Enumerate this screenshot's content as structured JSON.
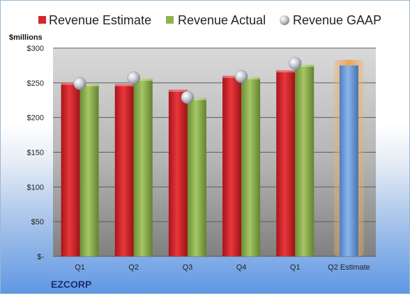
{
  "chart_data": {
    "type": "bar",
    "unit_label": "$millions",
    "company": "EZCORP",
    "categories": [
      "Q1",
      "Q2",
      "Q3",
      "Q4",
      "Q1",
      "Q2 Estimate"
    ],
    "series": [
      {
        "name": "Revenue Estimate",
        "kind": "bar",
        "color": "#d7262b",
        "values": [
          250,
          248,
          240,
          260,
          268,
          null
        ]
      },
      {
        "name": "Revenue Actual",
        "kind": "bar",
        "color": "#8fb24e",
        "values": [
          248,
          256,
          228,
          258,
          276,
          null
        ]
      },
      {
        "name": "Revenue GAAP",
        "kind": "marker",
        "color": "#c0c4cc",
        "values": [
          249,
          257,
          229,
          259,
          278,
          null
        ]
      },
      {
        "name": "Q2 Estimate",
        "kind": "bar-highlight",
        "color": "#6f9fd8",
        "values": [
          null,
          null,
          null,
          null,
          null,
          275
        ]
      }
    ],
    "ylim": [
      0,
      300
    ],
    "yticks": [
      0,
      50,
      100,
      150,
      200,
      250,
      300
    ],
    "ytick_labels": [
      "$-",
      "$50",
      "$100",
      "$150",
      "$200",
      "$250",
      "$300"
    ],
    "grid": true,
    "legend": "top"
  }
}
